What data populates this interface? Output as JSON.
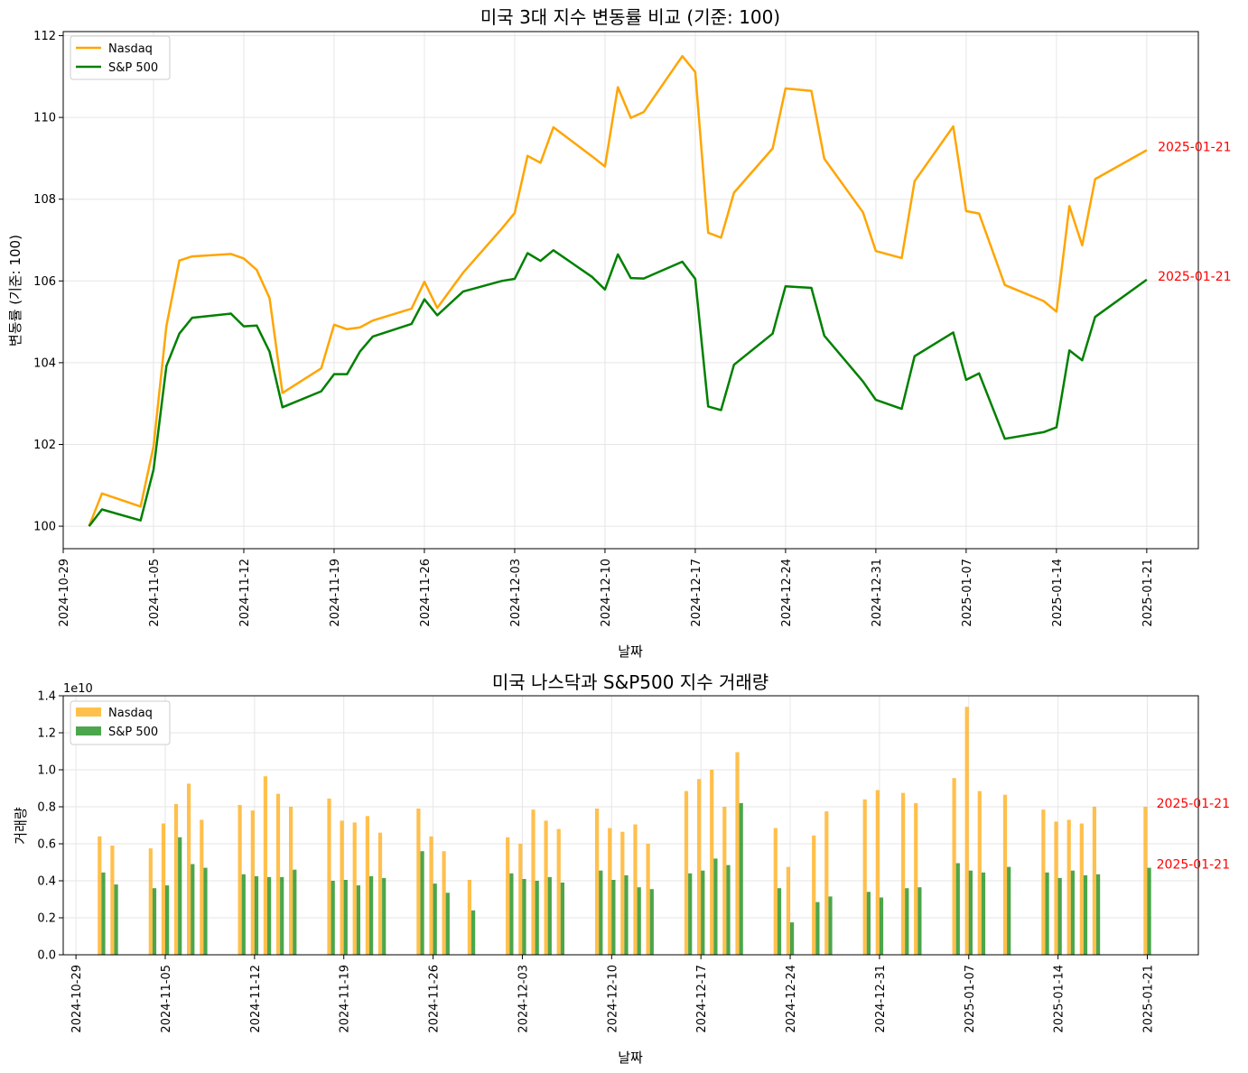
{
  "chart_data": [
    {
      "type": "line",
      "title": "미국 3대 지수 변동률 비교 (기준: 100)",
      "xlabel": "날짜",
      "ylabel": "변동률 (기준: 100)",
      "x_date_range": [
        "2024-10-29",
        "2025-01-25"
      ],
      "ylim": [
        99.45,
        112.1
      ],
      "yticks": [
        100,
        102,
        104,
        106,
        108,
        110,
        112
      ],
      "xticks": [
        "2024-10-29",
        "2024-11-05",
        "2024-11-12",
        "2024-11-19",
        "2024-11-26",
        "2024-12-03",
        "2024-12-10",
        "2024-12-17",
        "2024-12-24",
        "2024-12-31",
        "2025-01-07",
        "2025-01-14",
        "2025-01-21"
      ],
      "grid": true,
      "legend": "top-left",
      "x": [
        "2024-10-31",
        "2024-11-01",
        "2024-11-04",
        "2024-11-05",
        "2024-11-06",
        "2024-11-07",
        "2024-11-08",
        "2024-11-11",
        "2024-11-12",
        "2024-11-13",
        "2024-11-14",
        "2024-11-15",
        "2024-11-18",
        "2024-11-19",
        "2024-11-20",
        "2024-11-21",
        "2024-11-22",
        "2024-11-25",
        "2024-11-26",
        "2024-11-27",
        "2024-11-29",
        "2024-12-02",
        "2024-12-03",
        "2024-12-04",
        "2024-12-05",
        "2024-12-06",
        "2024-12-09",
        "2024-12-10",
        "2024-12-11",
        "2024-12-12",
        "2024-12-13",
        "2024-12-16",
        "2024-12-17",
        "2024-12-18",
        "2024-12-19",
        "2024-12-20",
        "2024-12-23",
        "2024-12-24",
        "2024-12-26",
        "2024-12-27",
        "2024-12-30",
        "2024-12-31",
        "2025-01-02",
        "2025-01-03",
        "2025-01-06",
        "2025-01-07",
        "2025-01-08",
        "2025-01-10",
        "2025-01-13",
        "2025-01-14",
        "2025-01-15",
        "2025-01-16",
        "2025-01-17",
        "2025-01-21"
      ],
      "series": [
        {
          "name": "Nasdaq",
          "color": "#ffa500",
          "values": [
            100.0,
            100.8,
            100.48,
            101.95,
            104.9,
            106.5,
            106.6,
            106.66,
            106.55,
            106.27,
            105.58,
            103.26,
            103.86,
            104.93,
            104.82,
            104.86,
            105.03,
            105.32,
            105.98,
            105.34,
            106.2,
            107.28,
            107.66,
            109.06,
            108.89,
            109.76,
            109.05,
            108.8,
            110.74,
            109.99,
            110.13,
            111.5,
            111.11,
            107.18,
            107.06,
            108.16,
            109.24,
            110.71,
            110.65,
            108.99,
            107.68,
            106.73,
            106.56,
            108.44,
            109.78,
            107.71,
            107.65,
            105.9,
            105.51,
            105.25,
            107.83,
            106.87,
            108.49,
            109.2
          ]
        },
        {
          "name": "S&P 500",
          "color": "#008000",
          "values": [
            100.0,
            100.41,
            100.14,
            101.38,
            103.92,
            104.71,
            105.1,
            105.2,
            104.89,
            104.91,
            104.27,
            102.91,
            103.3,
            103.72,
            103.72,
            104.27,
            104.64,
            104.95,
            105.55,
            105.16,
            105.74,
            106.0,
            106.05,
            106.68,
            106.49,
            106.75,
            106.1,
            105.79,
            106.65,
            106.07,
            106.06,
            106.47,
            106.05,
            102.93,
            102.84,
            103.95,
            104.71,
            105.87,
            105.83,
            104.66,
            103.54,
            103.09,
            102.87,
            104.16,
            104.74,
            103.58,
            103.74,
            102.14,
            102.3,
            102.42,
            104.3,
            104.06,
            105.12,
            106.03
          ]
        }
      ],
      "annotations": [
        {
          "text": "2025-01-21",
          "x": "2025-01-22",
          "y": 109.2,
          "color": "#ff0000"
        },
        {
          "text": "2025-01-21",
          "x": "2025-01-22",
          "y": 106.03,
          "color": "#ff0000"
        }
      ]
    },
    {
      "type": "bar",
      "title": "미국 나스닥과 S&P500 지수 거래량",
      "xlabel": "날짜",
      "ylabel": "거래량",
      "offset_label": "1e10",
      "x_date_range": [
        "2024-10-28",
        "2025-01-25"
      ],
      "ylim": [
        0,
        1.4
      ],
      "yticks": [
        "0.0",
        "0.2",
        "0.4",
        "0.6",
        "0.8",
        "1.0",
        "1.2",
        "1.4"
      ],
      "xticks": [
        "2024-10-29",
        "2024-11-05",
        "2024-11-12",
        "2024-11-19",
        "2024-11-26",
        "2024-12-03",
        "2024-12-10",
        "2024-12-17",
        "2024-12-24",
        "2024-12-31",
        "2025-01-07",
        "2025-01-14",
        "2025-01-21"
      ],
      "grid": true,
      "legend": "top-left",
      "x": [
        "2024-10-31",
        "2024-11-01",
        "2024-11-04",
        "2024-11-05",
        "2024-11-06",
        "2024-11-07",
        "2024-11-08",
        "2024-11-11",
        "2024-11-12",
        "2024-11-13",
        "2024-11-14",
        "2024-11-15",
        "2024-11-18",
        "2024-11-19",
        "2024-11-20",
        "2024-11-21",
        "2024-11-22",
        "2024-11-25",
        "2024-11-26",
        "2024-11-27",
        "2024-11-29",
        "2024-12-02",
        "2024-12-03",
        "2024-12-04",
        "2024-12-05",
        "2024-12-06",
        "2024-12-09",
        "2024-12-10",
        "2024-12-11",
        "2024-12-12",
        "2024-12-13",
        "2024-12-16",
        "2024-12-17",
        "2024-12-18",
        "2024-12-19",
        "2024-12-20",
        "2024-12-23",
        "2024-12-24",
        "2024-12-26",
        "2024-12-27",
        "2024-12-30",
        "2024-12-31",
        "2025-01-02",
        "2025-01-03",
        "2025-01-06",
        "2025-01-07",
        "2025-01-08",
        "2025-01-10",
        "2025-01-13",
        "2025-01-14",
        "2025-01-15",
        "2025-01-16",
        "2025-01-17",
        "2025-01-21"
      ],
      "series": [
        {
          "name": "Nasdaq",
          "color": "#ffa500",
          "opacity": 0.7,
          "values": [
            0.64,
            0.59,
            0.575,
            0.71,
            0.815,
            0.925,
            0.73,
            0.81,
            0.78,
            0.965,
            0.87,
            0.8,
            0.845,
            0.725,
            0.715,
            0.75,
            0.66,
            0.79,
            0.64,
            0.56,
            0.405,
            0.635,
            0.6,
            0.785,
            0.725,
            0.68,
            0.79,
            0.685,
            0.665,
            0.705,
            0.6,
            0.885,
            0.95,
            1.0,
            0.8,
            1.095,
            0.685,
            0.475,
            0.645,
            0.775,
            0.84,
            0.89,
            0.875,
            0.82,
            0.955,
            1.34,
            0.885,
            0.865,
            0.785,
            0.72,
            0.73,
            0.71,
            0.8,
            0.8
          ]
        },
        {
          "name": "S&P 500",
          "color": "#008000",
          "opacity": 0.7,
          "values": [
            0.445,
            0.38,
            0.36,
            0.375,
            0.635,
            0.49,
            0.47,
            0.435,
            0.425,
            0.42,
            0.42,
            0.46,
            0.4,
            0.405,
            0.375,
            0.425,
            0.415,
            0.56,
            0.385,
            0.335,
            0.24,
            0.44,
            0.41,
            0.4,
            0.42,
            0.39,
            0.455,
            0.405,
            0.43,
            0.365,
            0.355,
            0.44,
            0.455,
            0.52,
            0.485,
            0.82,
            0.36,
            0.175,
            0.285,
            0.315,
            0.34,
            0.31,
            0.36,
            0.365,
            0.495,
            0.455,
            0.445,
            0.475,
            0.445,
            0.415,
            0.455,
            0.43,
            0.435,
            0.47
          ]
        }
      ],
      "annotations": [
        {
          "text": "2025-01-21",
          "x": "2025-01-22",
          "y": 0.8,
          "color": "#ff0000"
        },
        {
          "text": "2025-01-21",
          "x": "2025-01-22",
          "y": 0.47,
          "color": "#ff0000"
        }
      ]
    }
  ]
}
